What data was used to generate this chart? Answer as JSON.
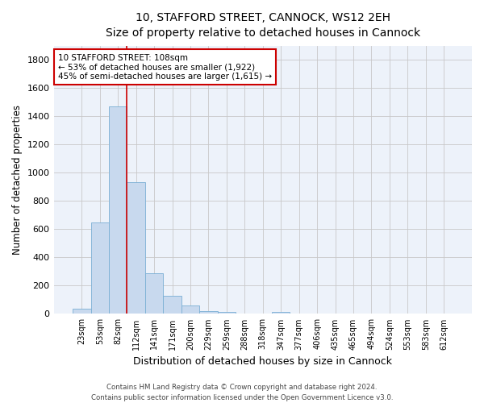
{
  "title_line1": "10, STAFFORD STREET, CANNOCK, WS12 2EH",
  "title_line2": "Size of property relative to detached houses in Cannock",
  "xlabel": "Distribution of detached houses by size in Cannock",
  "ylabel": "Number of detached properties",
  "bar_color": "#c8d9ee",
  "bar_edge_color": "#7aafd4",
  "background_color": "#edf2fa",
  "grid_color": "#c8c8c8",
  "annotation_box_color": "#cc0000",
  "vline_color": "#cc0000",
  "categories": [
    "23sqm",
    "53sqm",
    "82sqm",
    "112sqm",
    "141sqm",
    "171sqm",
    "200sqm",
    "229sqm",
    "259sqm",
    "288sqm",
    "318sqm",
    "347sqm",
    "377sqm",
    "406sqm",
    "435sqm",
    "465sqm",
    "494sqm",
    "524sqm",
    "553sqm",
    "583sqm",
    "612sqm"
  ],
  "values": [
    38,
    650,
    1470,
    935,
    290,
    128,
    62,
    22,
    12,
    0,
    0,
    12,
    0,
    0,
    0,
    0,
    0,
    0,
    0,
    0,
    0
  ],
  "ylim": [
    0,
    1900
  ],
  "yticks": [
    0,
    200,
    400,
    600,
    800,
    1000,
    1200,
    1400,
    1600,
    1800
  ],
  "vline_x_index": 2.5,
  "annotation_text_line1": "10 STAFFORD STREET: 108sqm",
  "annotation_text_line2": "← 53% of detached houses are smaller (1,922)",
  "annotation_text_line3": "45% of semi-detached houses are larger (1,615) →",
  "footer_line1": "Contains HM Land Registry data © Crown copyright and database right 2024.",
  "footer_line2": "Contains public sector information licensed under the Open Government Licence v3.0."
}
